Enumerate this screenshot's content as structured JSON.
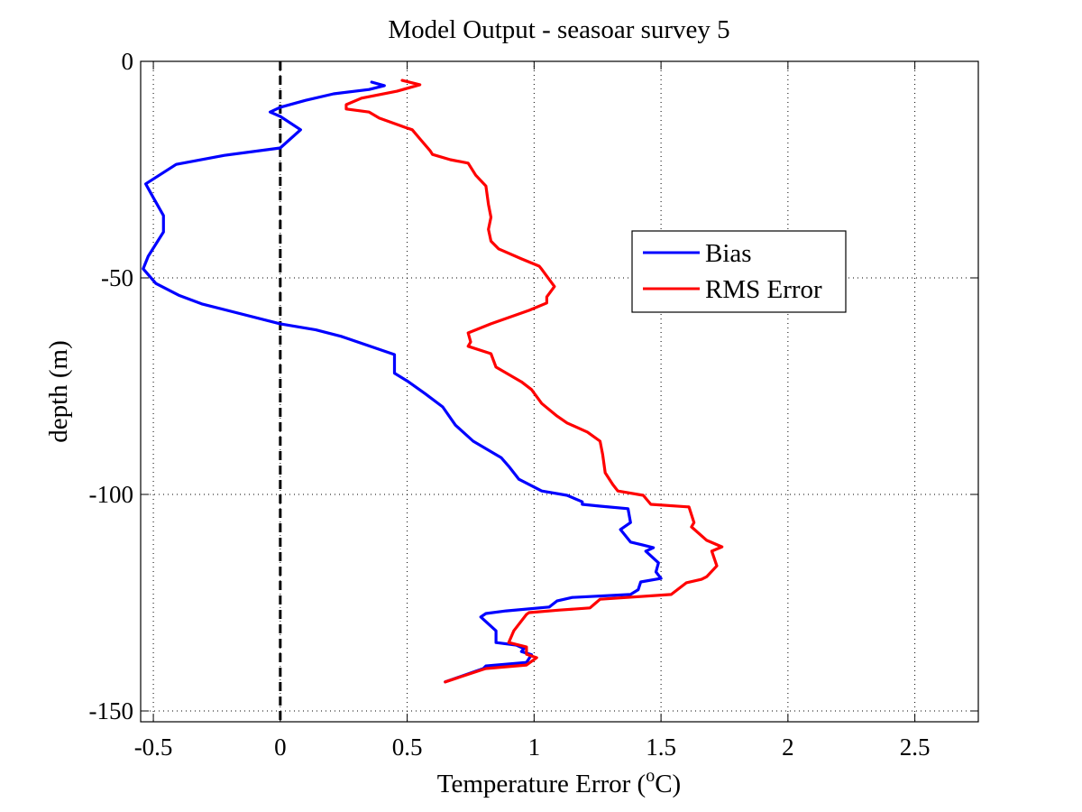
{
  "chart_data": {
    "type": "line",
    "title": "Model Output - seasoar survey 5",
    "xlabel_main": "Temperature Error  (",
    "xlabel_sup": "o",
    "xlabel_end": "C)",
    "ylabel": "depth (m)",
    "xlim": [
      -0.55,
      2.75
    ],
    "ylim": [
      -152.5,
      0
    ],
    "xticks": [
      -0.5,
      0,
      0.5,
      1,
      1.5,
      2,
      2.5
    ],
    "xtick_labels": [
      "-0.5",
      "0",
      "0.5",
      "1",
      "1.5",
      "2",
      "2.5"
    ],
    "yticks": [
      0,
      -50,
      -100,
      -150
    ],
    "ytick_labels": [
      "0",
      "-50",
      "-100",
      "-150"
    ],
    "grid": true,
    "legend_position": "center-right",
    "reference_line": {
      "x": 0,
      "style": "dashed",
      "color": "#000000"
    },
    "series": [
      {
        "name": "Bias",
        "color": "#0000ff",
        "points": [
          [
            0.36,
            -4.8
          ],
          [
            0.41,
            -5.6
          ],
          [
            0.35,
            -6.5
          ],
          [
            0.21,
            -7.5
          ],
          [
            0.1,
            -9
          ],
          [
            0.0,
            -10.6
          ],
          [
            -0.04,
            -11.7
          ],
          [
            0.0,
            -12.7
          ],
          [
            0.08,
            -15.8
          ],
          [
            0.0,
            -20
          ],
          [
            -0.22,
            -21.7
          ],
          [
            -0.41,
            -23.8
          ],
          [
            -0.53,
            -28.3
          ],
          [
            -0.5,
            -31.5
          ],
          [
            -0.46,
            -35.6
          ],
          [
            -0.46,
            -39.4
          ],
          [
            -0.52,
            -45
          ],
          [
            -0.54,
            -47.9
          ],
          [
            -0.49,
            -51.3
          ],
          [
            -0.4,
            -54
          ],
          [
            -0.31,
            -56
          ],
          [
            0.0,
            -60.6
          ],
          [
            0.14,
            -62
          ],
          [
            0.24,
            -63.5
          ],
          [
            0.45,
            -67.7
          ],
          [
            0.45,
            -72
          ],
          [
            0.5,
            -73.8
          ],
          [
            0.57,
            -76.7
          ],
          [
            0.64,
            -79.8
          ],
          [
            0.69,
            -84
          ],
          [
            0.76,
            -87.7
          ],
          [
            0.87,
            -91.5
          ],
          [
            0.9,
            -93.5
          ],
          [
            0.94,
            -96.5
          ],
          [
            1.03,
            -99.2
          ],
          [
            1.13,
            -100.2
          ],
          [
            1.19,
            -101.7
          ],
          [
            1.19,
            -102.3
          ],
          [
            1.26,
            -102.7
          ],
          [
            1.37,
            -103.3
          ],
          [
            1.38,
            -106.5
          ],
          [
            1.34,
            -108.1
          ],
          [
            1.38,
            -111
          ],
          [
            1.43,
            -111.7
          ],
          [
            1.47,
            -112.3
          ],
          [
            1.44,
            -113.1
          ],
          [
            1.49,
            -115.8
          ],
          [
            1.48,
            -117.9
          ],
          [
            1.5,
            -119.4
          ],
          [
            1.42,
            -120.2
          ],
          [
            1.41,
            -122
          ],
          [
            1.38,
            -123.1
          ],
          [
            1.15,
            -123.8
          ],
          [
            1.09,
            -124.6
          ],
          [
            1.06,
            -126
          ],
          [
            0.89,
            -126.9
          ],
          [
            0.81,
            -127.5
          ],
          [
            0.79,
            -128.3
          ],
          [
            0.85,
            -131.5
          ],
          [
            0.85,
            -134.2
          ],
          [
            0.93,
            -134.8
          ],
          [
            0.96,
            -135.6
          ],
          [
            0.95,
            -136.3
          ],
          [
            0.99,
            -137
          ],
          [
            0.97,
            -138.8
          ],
          [
            0.81,
            -139.6
          ],
          [
            0.8,
            -140.2
          ],
          [
            0.65,
            -143.3
          ]
        ]
      },
      {
        "name": "RMS Error",
        "color": "#ff0000",
        "points": [
          [
            0.48,
            -4.4
          ],
          [
            0.55,
            -5.4
          ],
          [
            0.46,
            -6.9
          ],
          [
            0.32,
            -8.5
          ],
          [
            0.26,
            -10
          ],
          [
            0.26,
            -11
          ],
          [
            0.35,
            -11.7
          ],
          [
            0.39,
            -13.1
          ],
          [
            0.49,
            -15.2
          ],
          [
            0.52,
            -15.8
          ],
          [
            0.55,
            -17.9
          ],
          [
            0.59,
            -20.6
          ],
          [
            0.6,
            -21.5
          ],
          [
            0.67,
            -22.7
          ],
          [
            0.74,
            -23.5
          ],
          [
            0.77,
            -26.3
          ],
          [
            0.81,
            -28.8
          ],
          [
            0.82,
            -33
          ],
          [
            0.83,
            -36
          ],
          [
            0.82,
            -38.8
          ],
          [
            0.83,
            -41.5
          ],
          [
            0.86,
            -43.3
          ],
          [
            0.95,
            -45.6
          ],
          [
            1.02,
            -47.3
          ],
          [
            1.03,
            -48
          ],
          [
            1.05,
            -49.6
          ],
          [
            1.08,
            -52
          ],
          [
            1.05,
            -54.4
          ],
          [
            1.05,
            -55.8
          ],
          [
            0.98,
            -57.5
          ],
          [
            0.83,
            -60.6
          ],
          [
            0.74,
            -62.7
          ],
          [
            0.75,
            -64.8
          ],
          [
            0.74,
            -65.8
          ],
          [
            0.83,
            -67.5
          ],
          [
            0.85,
            -70.6
          ],
          [
            0.95,
            -74
          ],
          [
            0.99,
            -75.8
          ],
          [
            1.03,
            -79
          ],
          [
            1.09,
            -81.9
          ],
          [
            1.13,
            -83.5
          ],
          [
            1.21,
            -85.6
          ],
          [
            1.26,
            -87.7
          ],
          [
            1.27,
            -90.8
          ],
          [
            1.28,
            -95
          ],
          [
            1.31,
            -97.7
          ],
          [
            1.33,
            -99.2
          ],
          [
            1.43,
            -100.2
          ],
          [
            1.46,
            -102.3
          ],
          [
            1.61,
            -102.9
          ],
          [
            1.63,
            -106.5
          ],
          [
            1.62,
            -107.5
          ],
          [
            1.68,
            -110.6
          ],
          [
            1.74,
            -112.1
          ],
          [
            1.7,
            -113.1
          ],
          [
            1.72,
            -116.5
          ],
          [
            1.68,
            -119
          ],
          [
            1.66,
            -119.6
          ],
          [
            1.6,
            -120.4
          ],
          [
            1.54,
            -123.1
          ],
          [
            1.26,
            -124.2
          ],
          [
            1.24,
            -125.2
          ],
          [
            1.22,
            -126.2
          ],
          [
            1.1,
            -126.7
          ],
          [
            0.98,
            -127.3
          ],
          [
            0.97,
            -127.7
          ],
          [
            0.92,
            -131.5
          ],
          [
            0.9,
            -134.2
          ],
          [
            0.97,
            -135.2
          ],
          [
            0.97,
            -136.9
          ],
          [
            1.01,
            -137.7
          ],
          [
            0.97,
            -139.4
          ],
          [
            0.81,
            -140.2
          ],
          [
            0.8,
            -140.4
          ],
          [
            0.65,
            -143.3
          ]
        ]
      }
    ]
  }
}
